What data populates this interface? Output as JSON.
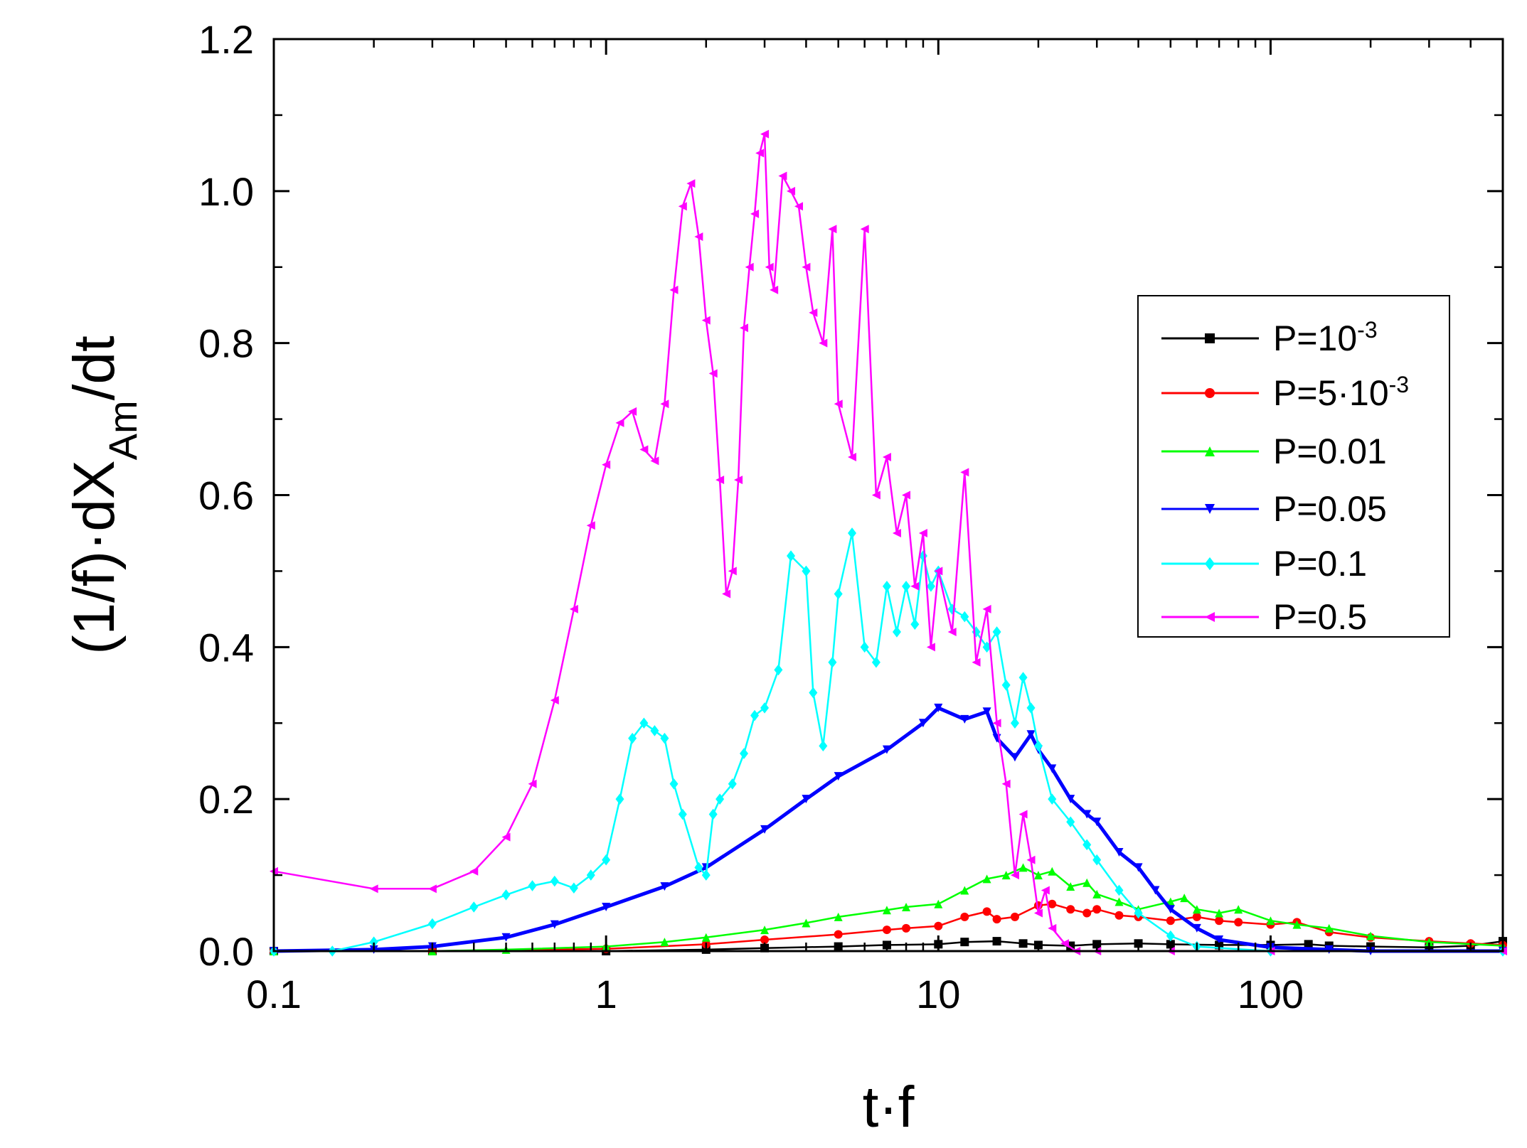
{
  "chart_data": {
    "type": "line",
    "title": "",
    "xlabel": "t·f",
    "ylabel": {
      "prefix": "(1/f)·dX",
      "subscript": "Am",
      "suffix": "/dt"
    },
    "xscale": "log",
    "xlim": [
      0.1,
      500
    ],
    "ylim": [
      0.0,
      1.2
    ],
    "xticks": [
      {
        "value": 0.1,
        "label": "0.1"
      },
      {
        "value": 1,
        "label": "1"
      },
      {
        "value": 10,
        "label": "10"
      },
      {
        "value": 100,
        "label": "100"
      }
    ],
    "yticks": [
      {
        "value": 0.0,
        "label": "0.0"
      },
      {
        "value": 0.2,
        "label": "0.2"
      },
      {
        "value": 0.4,
        "label": "0.4"
      },
      {
        "value": 0.6,
        "label": "0.6"
      },
      {
        "value": 0.8,
        "label": "0.8"
      },
      {
        "value": 1.0,
        "label": "1.0"
      },
      {
        "value": 1.2,
        "label": "1.2"
      }
    ],
    "legend_position": "right",
    "series": [
      {
        "name": "P=10⁻³",
        "label_base": "P=10",
        "label_sup": "-3",
        "color": "#000000",
        "marker": "square",
        "x": [
          0.1,
          0.3,
          1,
          2,
          3,
          5,
          7,
          10,
          12,
          15,
          18,
          20,
          25,
          30,
          40,
          50,
          70,
          100,
          130,
          150,
          200,
          300,
          400,
          500
        ],
        "y": [
          0.0,
          0.0,
          0.0,
          0.002,
          0.004,
          0.006,
          0.008,
          0.009,
          0.012,
          0.013,
          0.01,
          0.008,
          0.007,
          0.009,
          0.01,
          0.009,
          0.008,
          0.008,
          0.009,
          0.007,
          0.006,
          0.005,
          0.007,
          0.013
        ]
      },
      {
        "name": "P=5·10⁻³",
        "label_base": "P=5·10",
        "label_sup": "-3",
        "color": "#ff0000",
        "marker": "circle",
        "x": [
          0.1,
          0.3,
          1,
          2,
          3,
          5,
          7,
          8,
          10,
          12,
          14,
          15,
          17,
          20,
          22,
          25,
          28,
          30,
          35,
          40,
          50,
          60,
          70,
          80,
          100,
          120,
          150,
          200,
          300,
          400,
          500
        ],
        "y": [
          0.0,
          0.0,
          0.003,
          0.009,
          0.015,
          0.022,
          0.028,
          0.03,
          0.033,
          0.045,
          0.052,
          0.042,
          0.045,
          0.06,
          0.062,
          0.055,
          0.05,
          0.055,
          0.047,
          0.045,
          0.04,
          0.045,
          0.04,
          0.038,
          0.035,
          0.038,
          0.025,
          0.018,
          0.013,
          0.01,
          0.008
        ]
      },
      {
        "name": "P=0.01",
        "label_base": "P=0.01",
        "label_sup": "",
        "color": "#00ff00",
        "marker": "triangle-up",
        "x": [
          0.1,
          0.3,
          0.5,
          1,
          1.5,
          2,
          3,
          4,
          5,
          7,
          8,
          10,
          12,
          14,
          16,
          18,
          20,
          22,
          25,
          28,
          30,
          35,
          40,
          50,
          55,
          60,
          70,
          80,
          100,
          120,
          150,
          200,
          300,
          500
        ],
        "y": [
          0.0,
          0.0,
          0.002,
          0.006,
          0.012,
          0.018,
          0.028,
          0.037,
          0.045,
          0.054,
          0.058,
          0.062,
          0.08,
          0.095,
          0.1,
          0.11,
          0.1,
          0.105,
          0.085,
          0.09,
          0.075,
          0.065,
          0.055,
          0.065,
          0.07,
          0.055,
          0.05,
          0.055,
          0.04,
          0.035,
          0.03,
          0.02,
          0.012,
          0.007
        ]
      },
      {
        "name": "P=0.05",
        "label_base": "P=0.05",
        "label_sup": "",
        "color": "#0000ff",
        "marker": "triangle-down",
        "x": [
          0.1,
          0.2,
          0.3,
          0.5,
          0.7,
          1,
          1.5,
          2,
          3,
          4,
          5,
          7,
          9,
          10,
          12,
          14,
          15,
          17,
          19,
          20,
          22,
          25,
          28,
          30,
          35,
          40,
          45,
          50,
          60,
          70,
          100,
          150,
          200,
          500
        ],
        "y": [
          0.0,
          0.002,
          0.006,
          0.018,
          0.035,
          0.058,
          0.085,
          0.11,
          0.16,
          0.2,
          0.23,
          0.265,
          0.3,
          0.32,
          0.305,
          0.315,
          0.28,
          0.255,
          0.285,
          0.265,
          0.24,
          0.2,
          0.18,
          0.17,
          0.13,
          0.11,
          0.08,
          0.055,
          0.03,
          0.015,
          0.005,
          0.002,
          0.0,
          0.0
        ]
      },
      {
        "name": "P=0.1",
        "label_base": "P=0.1",
        "label_sup": "",
        "color": "#00ffff",
        "marker": "diamond",
        "x": [
          0.1,
          0.15,
          0.2,
          0.3,
          0.4,
          0.5,
          0.6,
          0.7,
          0.8,
          0.9,
          1.0,
          1.1,
          1.2,
          1.3,
          1.4,
          1.5,
          1.6,
          1.7,
          1.9,
          2.0,
          2.1,
          2.2,
          2.4,
          2.6,
          2.8,
          3.0,
          3.3,
          3.6,
          4.0,
          4.2,
          4.5,
          4.8,
          5.0,
          5.5,
          6.0,
          6.5,
          7.0,
          7.5,
          8.0,
          8.5,
          9.0,
          9.5,
          10,
          11,
          12,
          13,
          14,
          15,
          16,
          17,
          18,
          19,
          20,
          22,
          25,
          28,
          30,
          35,
          40,
          50,
          60,
          100,
          500
        ],
        "y": [
          0.0,
          0.0,
          0.012,
          0.036,
          0.058,
          0.074,
          0.086,
          0.092,
          0.083,
          0.1,
          0.12,
          0.2,
          0.28,
          0.3,
          0.29,
          0.28,
          0.22,
          0.18,
          0.11,
          0.1,
          0.18,
          0.2,
          0.22,
          0.26,
          0.31,
          0.32,
          0.37,
          0.52,
          0.5,
          0.34,
          0.27,
          0.38,
          0.47,
          0.55,
          0.4,
          0.38,
          0.48,
          0.42,
          0.48,
          0.43,
          0.52,
          0.48,
          0.5,
          0.45,
          0.44,
          0.42,
          0.4,
          0.42,
          0.35,
          0.3,
          0.36,
          0.32,
          0.27,
          0.2,
          0.17,
          0.14,
          0.12,
          0.08,
          0.05,
          0.02,
          0.006,
          0.0,
          0.0
        ]
      },
      {
        "name": "P=0.5",
        "label_base": "P=0.5",
        "label_sup": "",
        "color": "#ff00ff",
        "marker": "triangle-left",
        "x": [
          0.1,
          0.2,
          0.3,
          0.4,
          0.5,
          0.6,
          0.7,
          0.8,
          0.9,
          1.0,
          1.1,
          1.2,
          1.3,
          1.4,
          1.5,
          1.6,
          1.7,
          1.8,
          1.9,
          2.0,
          2.1,
          2.2,
          2.3,
          2.4,
          2.5,
          2.6,
          2.7,
          2.8,
          2.9,
          3.0,
          3.1,
          3.2,
          3.4,
          3.6,
          3.8,
          4.0,
          4.2,
          4.5,
          4.8,
          5.0,
          5.5,
          6.0,
          6.5,
          7.0,
          7.5,
          8.0,
          8.5,
          9.0,
          9.5,
          10,
          11,
          12,
          13,
          14,
          15,
          16,
          17,
          18,
          19,
          20,
          21,
          22,
          24,
          26,
          30,
          50,
          100,
          500
        ],
        "y": [
          0.105,
          0.082,
          0.082,
          0.105,
          0.15,
          0.22,
          0.33,
          0.45,
          0.56,
          0.64,
          0.695,
          0.71,
          0.66,
          0.645,
          0.72,
          0.87,
          0.98,
          1.01,
          0.94,
          0.83,
          0.76,
          0.62,
          0.47,
          0.5,
          0.62,
          0.82,
          0.9,
          0.97,
          1.05,
          1.075,
          0.9,
          0.87,
          1.02,
          1.0,
          0.98,
          0.9,
          0.84,
          0.8,
          0.95,
          0.72,
          0.65,
          0.95,
          0.6,
          0.65,
          0.55,
          0.6,
          0.48,
          0.55,
          0.4,
          0.5,
          0.42,
          0.63,
          0.38,
          0.45,
          0.3,
          0.22,
          0.1,
          0.18,
          0.12,
          0.05,
          0.08,
          0.03,
          0.01,
          0.0,
          0.0,
          0.0,
          0.0,
          0.0
        ]
      }
    ]
  }
}
